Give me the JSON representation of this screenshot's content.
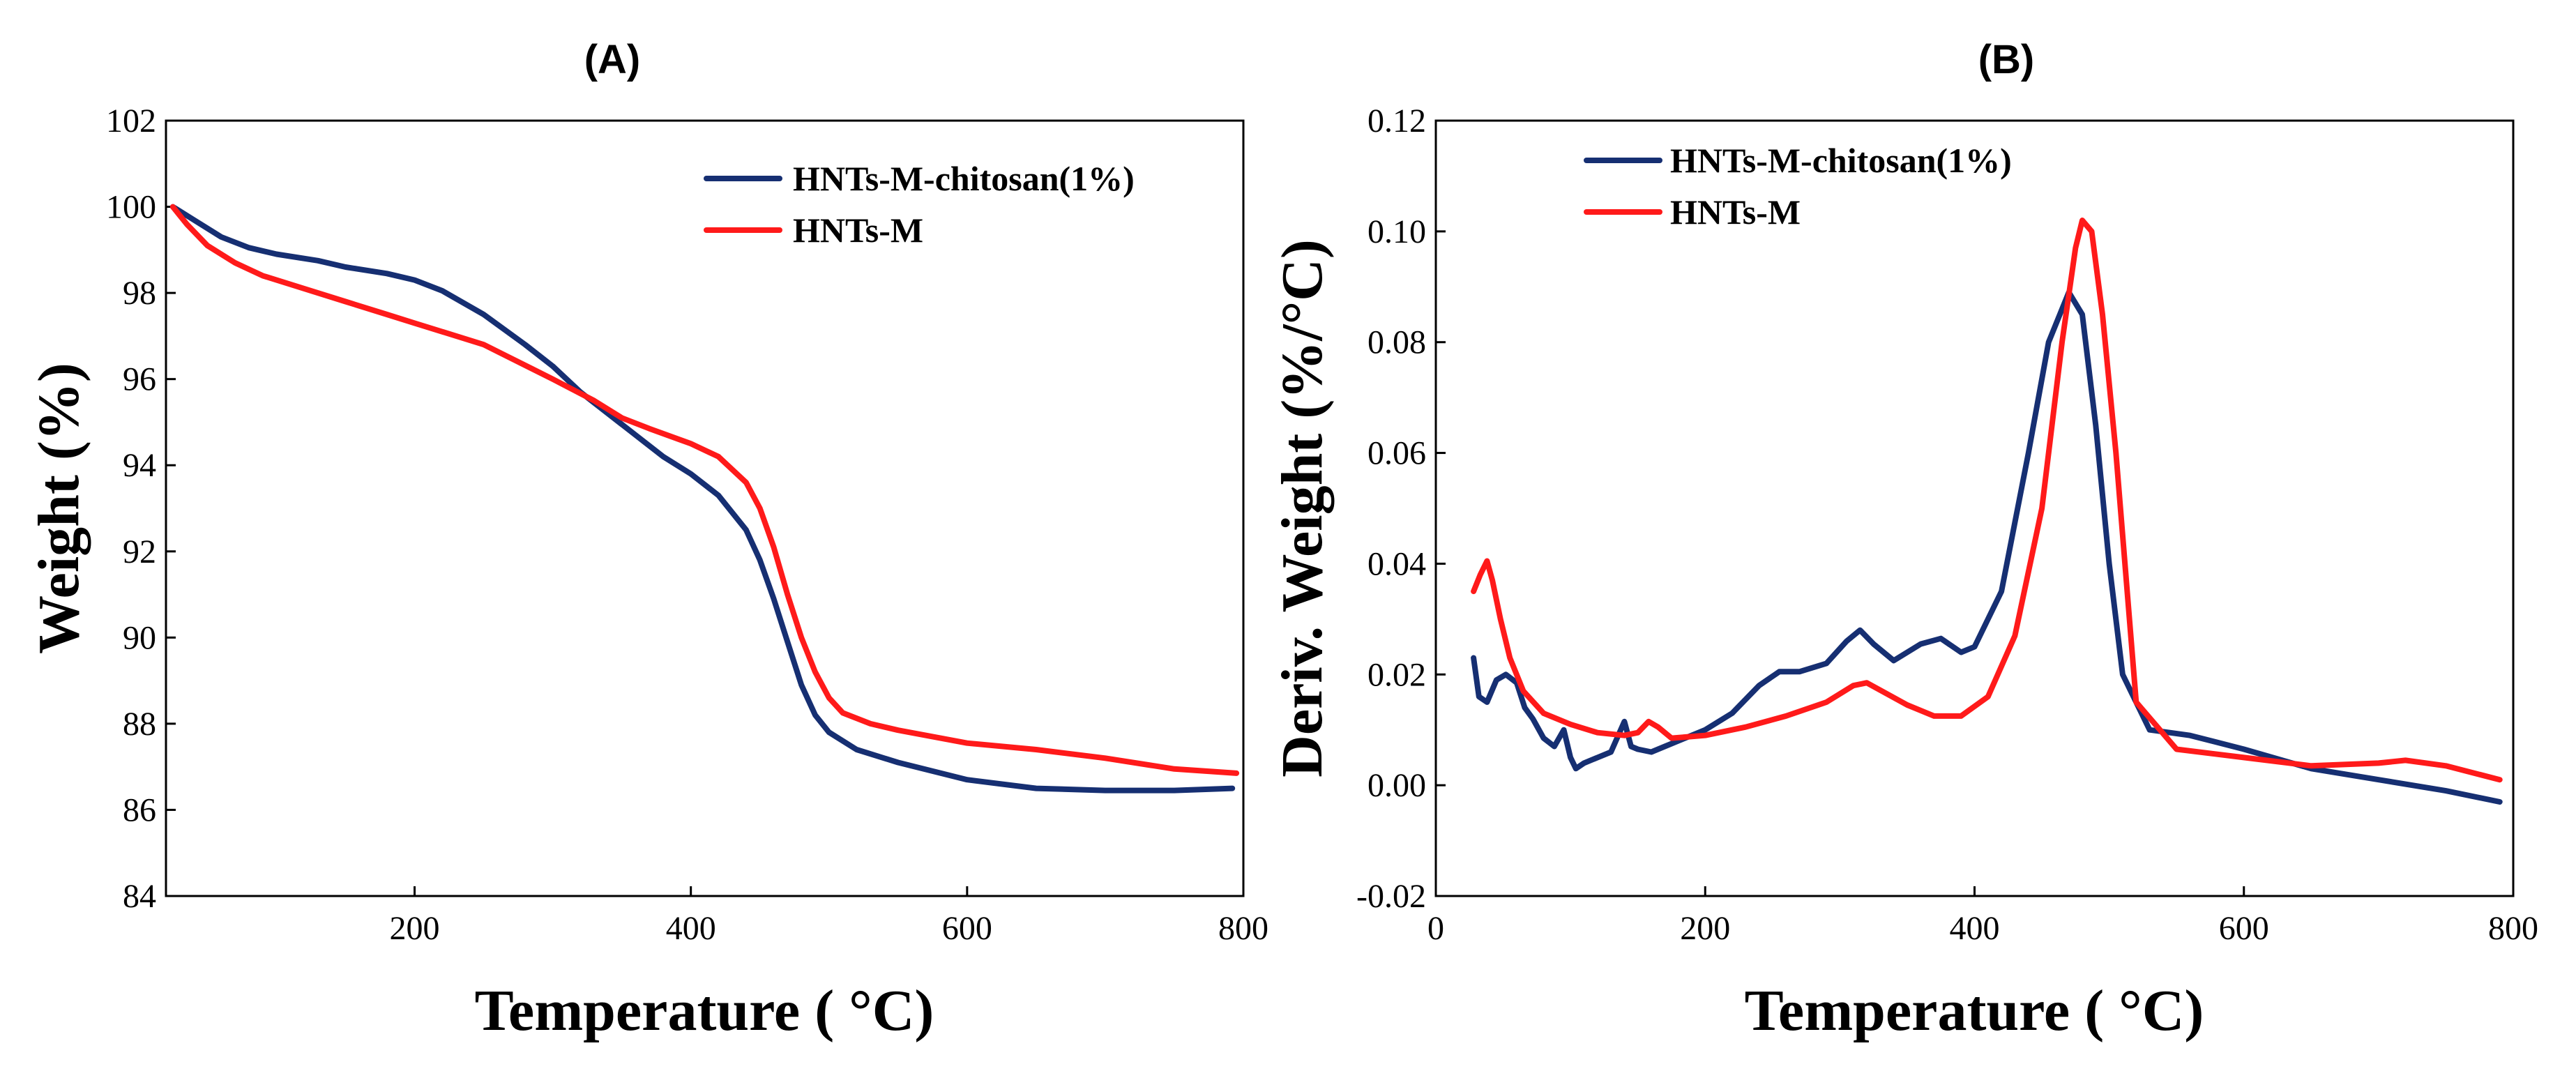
{
  "colors": {
    "blue": "#162f72",
    "red": "#ff1a1a"
  },
  "chart_data": [
    {
      "type": "line",
      "panel_label": "(A)",
      "xlabel": "Temperature ( °C)",
      "ylabel": "Weight (%)",
      "xlim": [
        20,
        800
      ],
      "ylim": [
        84,
        102
      ],
      "x_ticks": [
        200,
        400,
        600,
        800
      ],
      "x_tick_labels": [
        "200",
        "400",
        "600",
        "800"
      ],
      "y_ticks": [
        84,
        86,
        88,
        90,
        92,
        94,
        96,
        98,
        100,
        102
      ],
      "y_tick_labels": [
        "84",
        "86",
        "88",
        "90",
        "92",
        "94",
        "96",
        "98",
        "100",
        "102"
      ],
      "legend": "top-right",
      "series": [
        {
          "name": "HNTs-M-chitosan(1%)",
          "color": "#162f72",
          "x": [
            25,
            40,
            60,
            80,
            100,
            130,
            150,
            180,
            200,
            220,
            250,
            280,
            300,
            320,
            340,
            360,
            380,
            400,
            420,
            440,
            450,
            460,
            470,
            480,
            490,
            500,
            520,
            550,
            600,
            650,
            700,
            750,
            792
          ],
          "y": [
            100.0,
            99.7,
            99.3,
            99.05,
            98.9,
            98.75,
            98.6,
            98.45,
            98.3,
            98.05,
            97.5,
            96.8,
            96.3,
            95.7,
            95.2,
            94.7,
            94.2,
            93.8,
            93.3,
            92.5,
            91.8,
            90.9,
            89.9,
            88.9,
            88.2,
            87.8,
            87.4,
            87.1,
            86.7,
            86.5,
            86.45,
            86.45,
            86.5
          ]
        },
        {
          "name": "HNTs-M",
          "color": "#ff1a1a",
          "x": [
            25,
            35,
            50,
            70,
            90,
            120,
            150,
            180,
            200,
            250,
            300,
            330,
            350,
            370,
            400,
            420,
            440,
            450,
            460,
            470,
            480,
            490,
            500,
            510,
            530,
            550,
            600,
            650,
            700,
            750,
            795
          ],
          "y": [
            100.0,
            99.6,
            99.1,
            98.7,
            98.4,
            98.1,
            97.8,
            97.5,
            97.3,
            96.8,
            96.0,
            95.5,
            95.1,
            94.85,
            94.5,
            94.2,
            93.6,
            93.0,
            92.1,
            91.0,
            90.0,
            89.2,
            88.6,
            88.25,
            88.0,
            87.85,
            87.55,
            87.4,
            87.2,
            86.95,
            86.85
          ]
        }
      ]
    },
    {
      "type": "line",
      "panel_label": "(B)",
      "xlabel": "Temperature ( °C)",
      "ylabel": "Deriv. Weight (%/°C)",
      "xlim": [
        0,
        800
      ],
      "ylim": [
        -0.02,
        0.12
      ],
      "x_ticks": [
        0,
        200,
        400,
        600,
        800
      ],
      "x_tick_labels": [
        "0",
        "200",
        "400",
        "600",
        "800"
      ],
      "y_ticks": [
        -0.02,
        0.0,
        0.02,
        0.04,
        0.06,
        0.08,
        0.1,
        0.12
      ],
      "y_tick_labels": [
        "-0.02",
        "0.00",
        "0.02",
        "0.04",
        "0.06",
        "0.08",
        "0.10",
        "0.12"
      ],
      "legend": "top-left",
      "series": [
        {
          "name": "HNTs-M-chitosan(1%)",
          "color": "#162f72",
          "x": [
            28,
            32,
            38,
            45,
            52,
            60,
            66,
            72,
            80,
            88,
            95,
            100,
            104,
            110,
            120,
            130,
            140,
            145,
            150,
            160,
            170,
            180,
            200,
            220,
            240,
            255,
            270,
            290,
            305,
            315,
            325,
            340,
            360,
            375,
            390,
            400,
            420,
            440,
            455,
            470,
            480,
            490,
            500,
            510,
            530,
            560,
            600,
            650,
            700,
            750,
            790
          ],
          "y": [
            0.023,
            0.016,
            0.015,
            0.019,
            0.02,
            0.0185,
            0.014,
            0.012,
            0.0085,
            0.007,
            0.01,
            0.005,
            0.003,
            0.004,
            0.005,
            0.006,
            0.0115,
            0.007,
            0.0065,
            0.006,
            0.007,
            0.008,
            0.01,
            0.013,
            0.018,
            0.0205,
            0.0205,
            0.022,
            0.026,
            0.028,
            0.0255,
            0.0225,
            0.0255,
            0.0265,
            0.024,
            0.025,
            0.035,
            0.06,
            0.08,
            0.089,
            0.085,
            0.065,
            0.04,
            0.02,
            0.01,
            0.009,
            0.0065,
            0.003,
            0.001,
            -0.001,
            -0.003
          ]
        },
        {
          "name": "HNTs-M",
          "color": "#ff1a1a",
          "x": [
            28,
            33,
            38,
            42,
            48,
            55,
            65,
            80,
            100,
            120,
            140,
            150,
            158,
            165,
            175,
            200,
            230,
            260,
            290,
            310,
            320,
            335,
            350,
            370,
            390,
            410,
            430,
            450,
            465,
            475,
            480,
            487,
            495,
            505,
            520,
            550,
            600,
            650,
            700,
            720,
            750,
            790
          ],
          "y": [
            0.035,
            0.038,
            0.0405,
            0.037,
            0.03,
            0.023,
            0.017,
            0.013,
            0.011,
            0.0095,
            0.009,
            0.0095,
            0.0115,
            0.0105,
            0.0085,
            0.009,
            0.0105,
            0.0125,
            0.015,
            0.018,
            0.0185,
            0.0165,
            0.0145,
            0.0125,
            0.0125,
            0.016,
            0.027,
            0.05,
            0.08,
            0.097,
            0.102,
            0.1,
            0.085,
            0.06,
            0.015,
            0.0065,
            0.005,
            0.0035,
            0.004,
            0.0045,
            0.0035,
            0.001
          ]
        }
      ]
    }
  ]
}
